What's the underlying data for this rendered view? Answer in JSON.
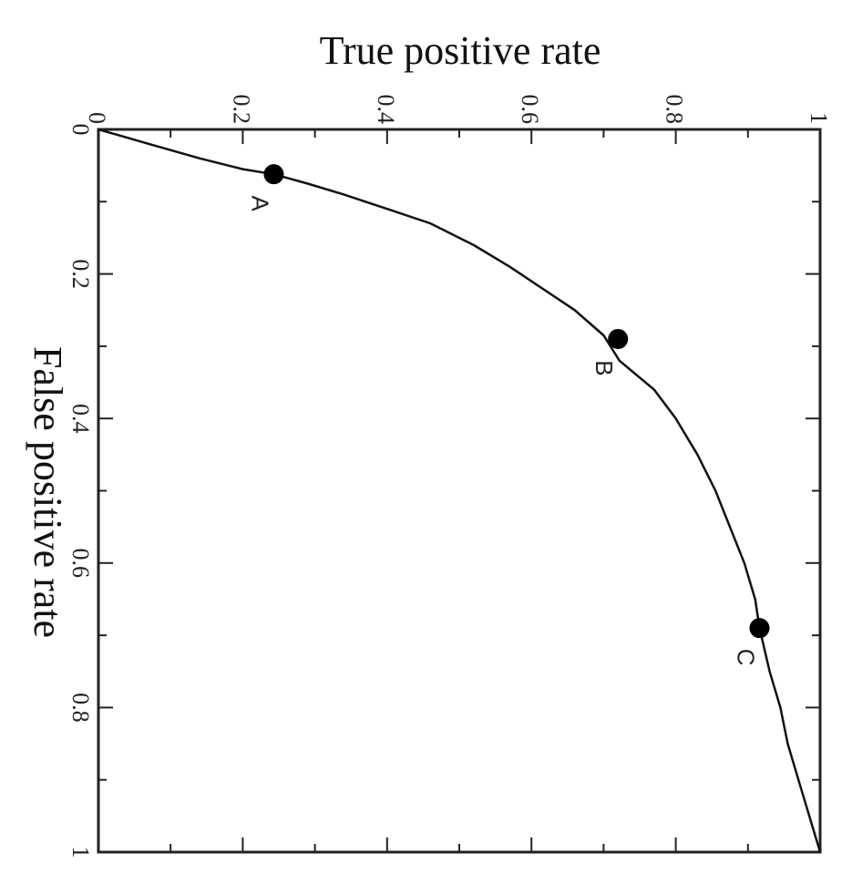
{
  "chart_data": {
    "type": "line",
    "orientation": "rotated 90° clockwise",
    "xlabel": "False positive rate",
    "ylabel": "True positive rate",
    "xlim": [
      0,
      1
    ],
    "ylim": [
      0,
      1
    ],
    "x_ticks": [
      "0",
      "0.2",
      "0.4",
      "0.6",
      "0.8",
      "1"
    ],
    "y_ticks": [
      "0",
      "0.2",
      "0.4",
      "0.6",
      "0.8",
      "1"
    ],
    "grid": false,
    "series": [
      {
        "x": [
          0,
          0.02,
          0.04,
          0.055,
          0.062,
          0.075,
          0.09,
          0.11,
          0.13,
          0.16,
          0.19,
          0.22,
          0.25,
          0.285,
          0.32,
          0.36,
          0.4,
          0.45,
          0.5,
          0.55,
          0.6,
          0.65,
          0.69,
          0.75,
          0.8,
          0.85,
          0.9,
          0.95,
          1.0
        ],
        "y": [
          0,
          0.07,
          0.14,
          0.2,
          0.243,
          0.29,
          0.34,
          0.4,
          0.46,
          0.52,
          0.57,
          0.615,
          0.66,
          0.7,
          0.722,
          0.77,
          0.8,
          0.83,
          0.855,
          0.875,
          0.895,
          0.91,
          0.916,
          0.93,
          0.945,
          0.955,
          0.97,
          0.985,
          1.0
        ]
      }
    ],
    "points": [
      {
        "label": "A",
        "x": 0.062,
        "y": 0.243
      },
      {
        "label": "B",
        "x": 0.29,
        "y": 0.72
      },
      {
        "label": "C",
        "x": 0.69,
        "y": 0.916
      }
    ],
    "colors": {
      "line": "#111111",
      "points": "#000000",
      "axes": "#222222"
    }
  }
}
